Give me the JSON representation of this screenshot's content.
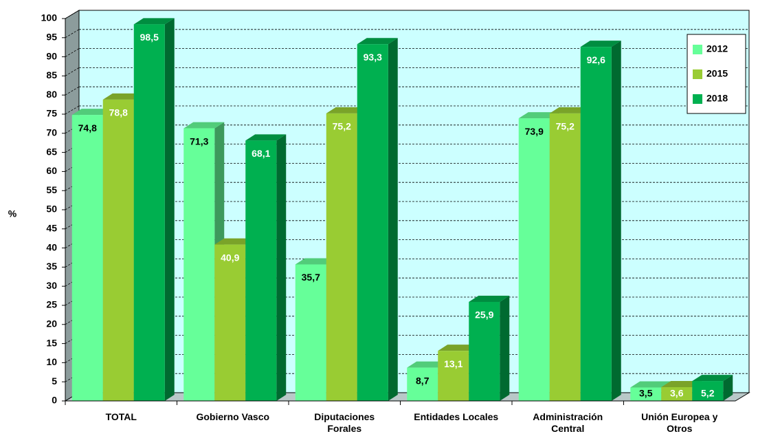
{
  "chart_data": {
    "type": "bar3d",
    "y_label": "%",
    "categories": [
      "TOTAL",
      "Gobierno Vasco",
      "Diputaciones Forales",
      "Entidades Locales",
      "Administración Central",
      "Unión Europea y Otros"
    ],
    "series": [
      {
        "name": "2012",
        "color": "#66ff99",
        "label_color": "#000000",
        "values": [
          74.8,
          71.3,
          35.7,
          8.7,
          73.9,
          3.5
        ],
        "value_labels": [
          "74,8",
          "71,3",
          "35,7",
          "8,7",
          "73,9",
          "3,5"
        ]
      },
      {
        "name": "2015",
        "color": "#99cc33",
        "label_color": "#ffffff",
        "values": [
          78.8,
          40.9,
          75.2,
          13.1,
          75.2,
          3.6
        ],
        "value_labels": [
          "78,8",
          "40,9",
          "75,2",
          "13,1",
          "75,2",
          "3,6"
        ]
      },
      {
        "name": "2018",
        "color": "#00b050",
        "label_color": "#ffffff",
        "values": [
          98.5,
          68.1,
          93.3,
          25.9,
          92.6,
          5.2
        ],
        "value_labels": [
          "98,5",
          "68,1",
          "93,3",
          "25,9",
          "92,6",
          "5,2"
        ]
      }
    ],
    "ylim": [
      0,
      100
    ],
    "yticks": [
      0,
      5,
      10,
      15,
      20,
      25,
      30,
      35,
      40,
      45,
      50,
      55,
      60,
      65,
      70,
      75,
      80,
      85,
      90,
      95,
      100
    ],
    "grid": true,
    "legend": "top-right"
  }
}
